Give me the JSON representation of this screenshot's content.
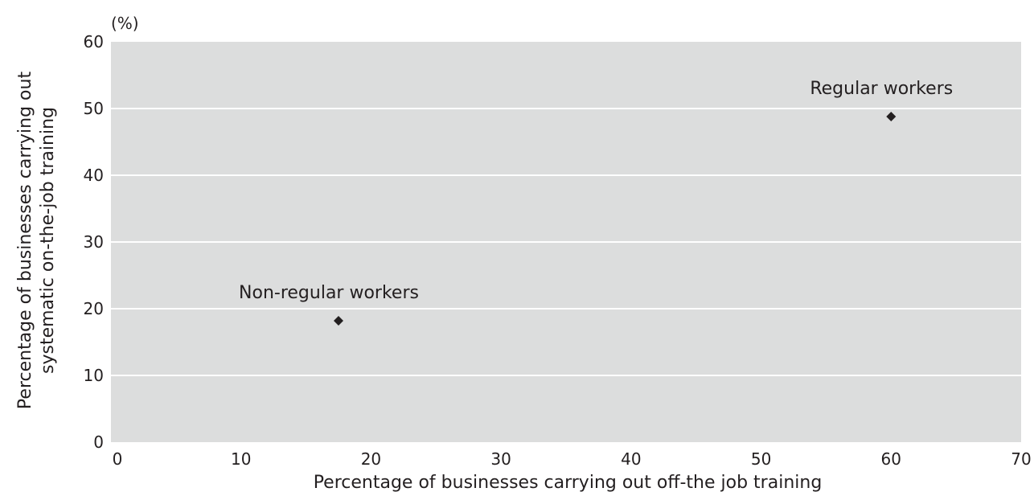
{
  "chart_data": {
    "type": "scatter",
    "title": "",
    "y_unit": "(%)",
    "xlabel": "Percentage of businesses carrying out off-the job training",
    "ylabel_lines": [
      "Percentage of businesses carrying out",
      "systematic on-the-job training"
    ],
    "xlim": [
      0,
      70
    ],
    "ylim": [
      0,
      60
    ],
    "x_ticks": [
      "0",
      "10",
      "20",
      "30",
      "40",
      "50",
      "60",
      "70"
    ],
    "y_ticks": [
      "0",
      "10",
      "20",
      "30",
      "40",
      "50",
      "60"
    ],
    "grid": true,
    "points": [
      {
        "label": "Regular workers",
        "x": 60.0,
        "y": 48.8
      },
      {
        "label": "Non-regular workers",
        "x": 17.5,
        "y": 18.2
      }
    ],
    "colors": {
      "plot_background": "#dcdddd",
      "grid": "#ffffff",
      "marker": "#231f20"
    }
  }
}
